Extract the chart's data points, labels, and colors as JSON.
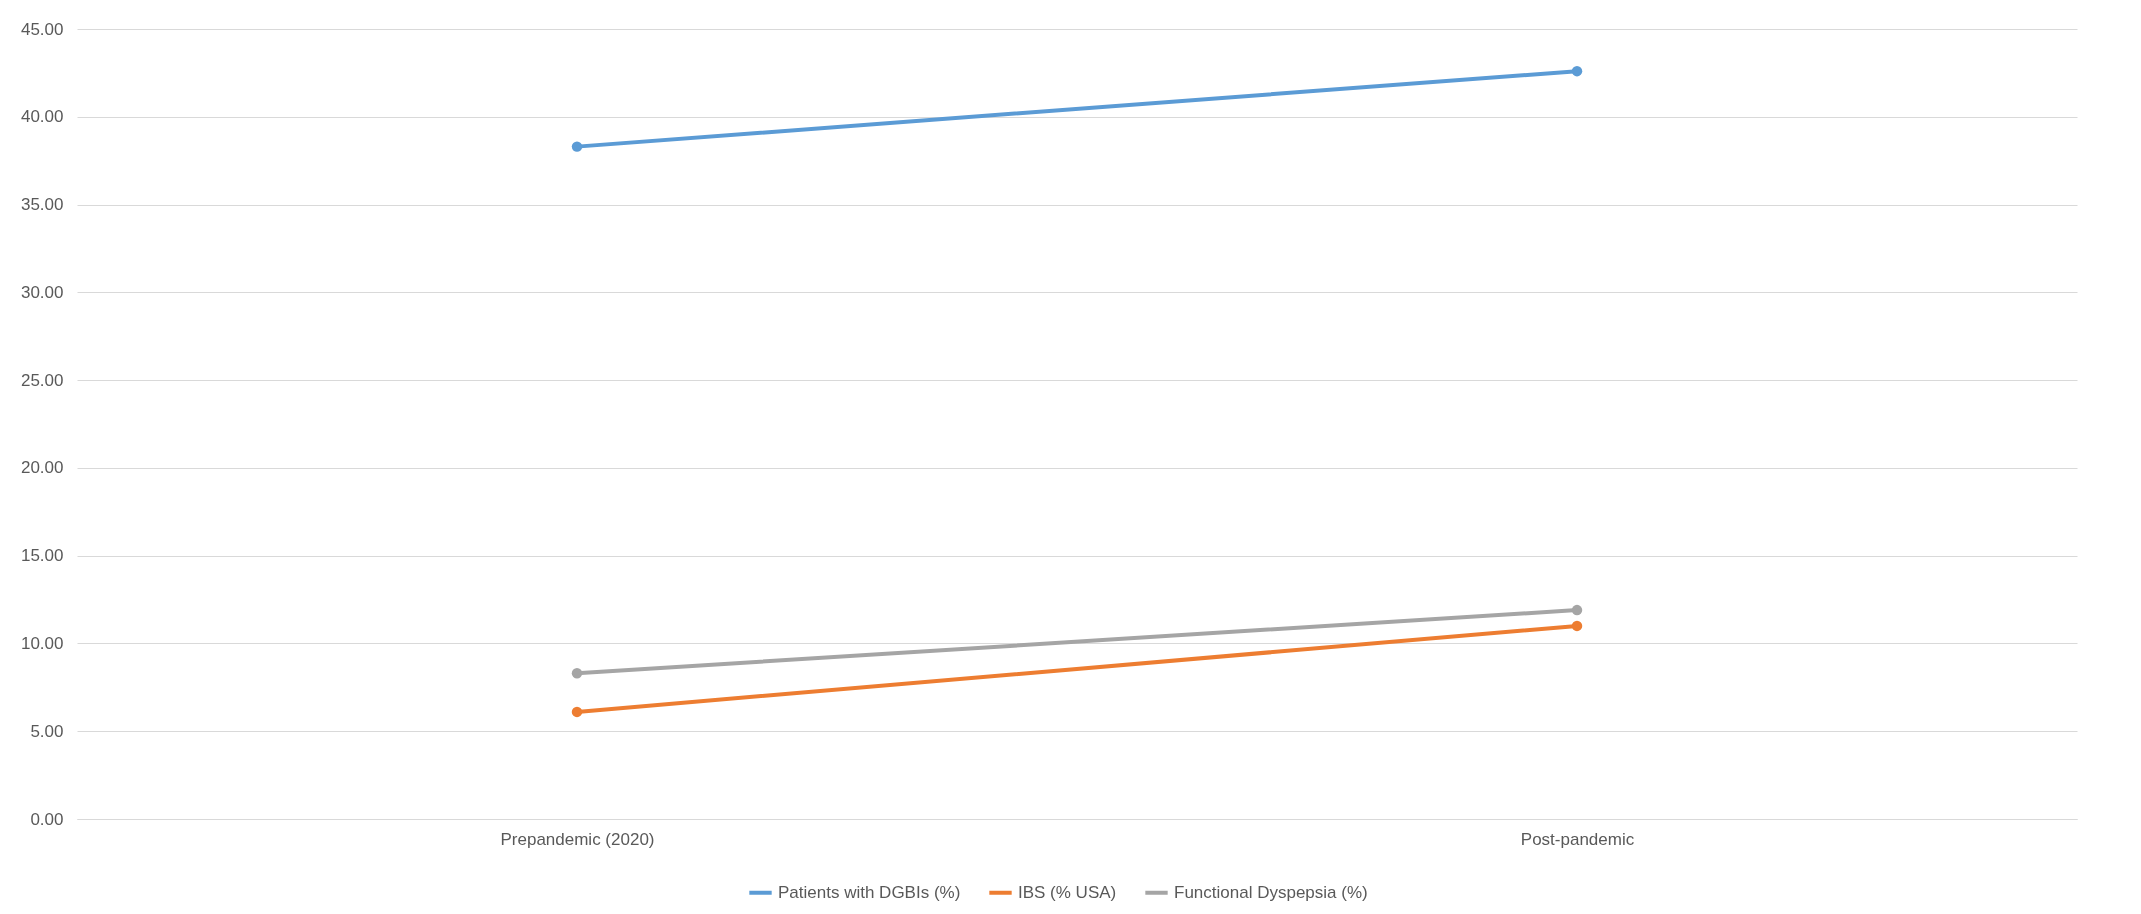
{
  "chart_data": {
    "type": "line",
    "categories": [
      "Prepandemic (2020)",
      "Post-pandemic"
    ],
    "series": [
      {
        "name": "Patients with DGBIs (%)",
        "color": "#5b9bd5",
        "values": [
          38.3,
          42.6
        ]
      },
      {
        "name": "IBS (% USA)",
        "color": "#ed7d31",
        "values": [
          6.1,
          11.0
        ]
      },
      {
        "name": "Functional Dyspepsia (%)",
        "color": "#a5a5a5",
        "values": [
          8.3,
          11.9
        ]
      }
    ],
    "ylim": [
      0,
      45
    ],
    "yticks": [
      {
        "value": 0,
        "label": "0.00"
      },
      {
        "value": 5,
        "label": "5.00"
      },
      {
        "value": 10,
        "label": "10.00"
      },
      {
        "value": 15,
        "label": "15.00"
      },
      {
        "value": 20,
        "label": "20.00"
      },
      {
        "value": 25,
        "label": "25.00"
      },
      {
        "value": 30,
        "label": "30.00"
      },
      {
        "value": 35,
        "label": "35.00"
      },
      {
        "value": 40,
        "label": "40.00"
      },
      {
        "value": 45,
        "label": "45.00"
      }
    ],
    "grid": "y",
    "legend": "bottom",
    "marker": "circle",
    "line_style": "solid"
  }
}
